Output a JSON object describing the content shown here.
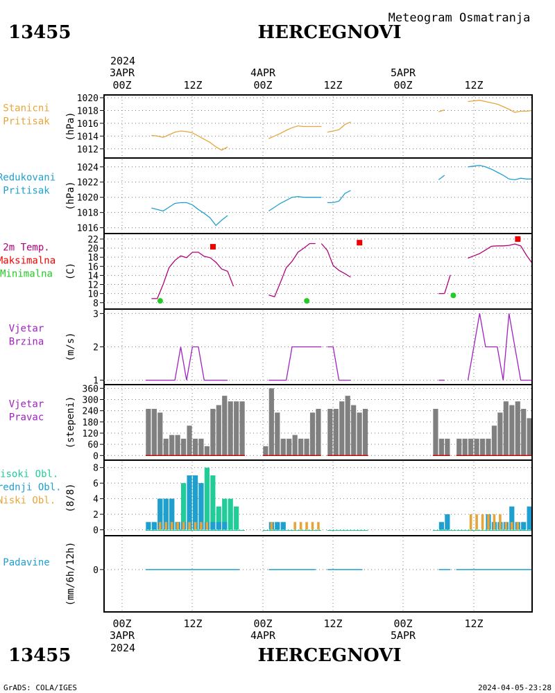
{
  "header": {
    "station_id": "13455",
    "station_name": "HERCEGNOVI",
    "subtitle": "Meteogram Osmatranja",
    "top_year": "2024",
    "top_dates": [
      "3APR",
      "4APR",
      "5APR"
    ],
    "top_hours": [
      "00Z",
      "12Z",
      "00Z",
      "12Z",
      "00Z",
      "12Z"
    ],
    "bottom_hours": [
      "00Z",
      "12Z",
      "00Z",
      "12Z",
      "00Z",
      "12Z"
    ],
    "bottom_dates": [
      "3APR",
      "4APR",
      "5APR"
    ],
    "bottom_year": "2024"
  },
  "footer": {
    "credit": "GrADS: COLA/IGES",
    "timestamp": "2024-04-05-23:28"
  },
  "colors": {
    "pressure_station": "#e6a53a",
    "pressure_reduced": "#1e9fd0",
    "temperature": "#b0007a",
    "tmax": "#ee0000",
    "tmin": "#22cc22",
    "wind": "#a020c0",
    "direction_bar": "#808080",
    "cloud_high": "#22cc99",
    "cloud_mid": "#1e9fd0",
    "cloud_low": "#e6a53a",
    "precip": "#1e9fd0"
  },
  "chart_data": [
    {
      "type": "line",
      "panel": "station_pressure",
      "labels": [
        "Stanicni",
        "Pritisak"
      ],
      "ylabel": "(hPa)",
      "ylim": [
        1011,
        1020
      ],
      "yticks": [
        1012,
        1014,
        1016,
        1018,
        1020
      ],
      "series": [
        {
          "x": [
            5,
            6,
            7,
            8,
            9,
            10,
            11,
            12,
            13,
            14,
            15,
            16,
            17,
            18
          ],
          "y": [
            1014.1,
            1014.0,
            1013.8,
            1014.2,
            1014.6,
            1014.8,
            1014.7,
            1014.5,
            1014.0,
            1013.5,
            1013.0,
            1012.3,
            1011.8,
            1012.3
          ]
        },
        {
          "x": [
            25,
            26,
            27,
            28,
            29,
            30,
            31,
            32,
            33,
            34
          ],
          "y": [
            1013.6,
            1014.0,
            1014.4,
            1014.9,
            1015.3,
            1015.6,
            1015.5,
            1015.5,
            1015.5,
            1015.5
          ]
        },
        {
          "x": [
            35,
            36,
            37,
            38,
            39
          ],
          "y": [
            1014.6,
            1014.8,
            1015.0,
            1015.8,
            1016.2
          ]
        },
        {
          "x": [
            54,
            55
          ],
          "y": [
            1017.8,
            1018.1
          ]
        },
        {
          "x": [
            59,
            60,
            61,
            62,
            63,
            64,
            65,
            66,
            67,
            68,
            69,
            70,
            71,
            72
          ],
          "y": [
            1019.4,
            1019.5,
            1019.6,
            1019.4,
            1019.2,
            1019.0,
            1018.6,
            1018.2,
            1017.7,
            1017.9,
            1017.9,
            1018.0,
            1018.4,
            1018.3
          ]
        }
      ]
    },
    {
      "type": "line",
      "panel": "reduced_pressure",
      "labels": [
        "Redukovani",
        "Pritisak"
      ],
      "ylabel": "(hPa)",
      "ylim": [
        1015.6,
        1024.8
      ],
      "yticks": [
        1016,
        1018,
        1020,
        1022,
        1024
      ],
      "series": [
        {
          "x": [
            5,
            6,
            7,
            8,
            9,
            10,
            11,
            12,
            13,
            14,
            15,
            16,
            17,
            18
          ],
          "y": [
            1018.6,
            1018.4,
            1018.2,
            1018.7,
            1019.2,
            1019.3,
            1019.3,
            1019.0,
            1018.4,
            1017.9,
            1017.3,
            1016.3,
            1017.0,
            1017.6
          ]
        },
        {
          "x": [
            25,
            26,
            27,
            28,
            29,
            30,
            31,
            32,
            33,
            34
          ],
          "y": [
            1018.2,
            1018.7,
            1019.2,
            1019.6,
            1020.0,
            1020.1,
            1020.0,
            1020.0,
            1020.0,
            1020.0
          ]
        },
        {
          "x": [
            35,
            36,
            37,
            38,
            39
          ],
          "y": [
            1019.3,
            1019.3,
            1019.5,
            1020.5,
            1020.9
          ]
        },
        {
          "x": [
            54,
            55
          ],
          "y": [
            1022.3,
            1022.9
          ]
        },
        {
          "x": [
            59,
            60,
            61,
            62,
            63,
            64,
            65,
            66,
            67,
            68,
            69,
            70,
            71,
            72
          ],
          "y": [
            1024.0,
            1024.1,
            1024.2,
            1024.0,
            1023.7,
            1023.3,
            1022.9,
            1022.4,
            1022.3,
            1022.5,
            1022.4,
            1022.4,
            1022.8,
            1022.9
          ]
        }
      ]
    },
    {
      "type": "line",
      "panel": "temperature",
      "labels": [
        "2m Temp.",
        "Maksimalna",
        "Minimalna"
      ],
      "ylabel": "(C)",
      "ylim": [
        7.2,
        22.6
      ],
      "yticks": [
        8,
        10,
        12,
        14,
        16,
        18,
        20,
        22
      ],
      "series": [
        {
          "x": [
            5,
            6,
            7,
            8,
            9,
            10,
            11,
            12,
            13,
            14,
            15,
            16,
            17,
            18
          ],
          "y": [
            8.9,
            8.9,
            12.0,
            15.7,
            17.3,
            18.3,
            17.9,
            19.1,
            19.1,
            18.2,
            17.9,
            16.9,
            15.4,
            14.9
          ]
        },
        {
          "x": [
            18,
            19
          ],
          "y": [
            14.9,
            11.6
          ]
        },
        {
          "x": [
            25,
            26,
            27,
            28,
            29,
            30,
            31,
            32,
            33
          ],
          "y": [
            9.7,
            9.3,
            12.4,
            15.7,
            17.1,
            19.1,
            20.0,
            21.0,
            21.0
          ]
        },
        {
          "x": [
            34,
            35,
            36,
            37,
            38,
            39
          ],
          "y": [
            21.0,
            19.5,
            16.2,
            15.1,
            14.4,
            13.6
          ]
        },
        {
          "x": [
            54,
            55
          ],
          "y": [
            10.0,
            10.0
          ]
        },
        {
          "x": [
            55,
            56
          ],
          "y": [
            10.0,
            14.1
          ]
        },
        {
          "x": [
            59,
            60,
            61,
            62,
            63,
            64,
            65,
            66,
            67,
            68,
            69,
            70,
            71,
            72
          ],
          "y": [
            17.8,
            18.3,
            18.8,
            19.6,
            20.4,
            20.5,
            20.5,
            20.6,
            20.9,
            20.5,
            18.4,
            16.6,
            15.3,
            13.9
          ]
        }
      ],
      "tmax": [
        {
          "x": 15.5,
          "y": 20.3
        },
        {
          "x": 40.5,
          "y": 21.2
        },
        {
          "x": 67.5,
          "y": 22.0
        }
      ],
      "tmin": [
        {
          "x": 6.5,
          "y": 8.4
        },
        {
          "x": 31.5,
          "y": 8.4
        },
        {
          "x": 56.5,
          "y": 9.6
        }
      ]
    },
    {
      "type": "line",
      "panel": "wind_speed",
      "labels": [
        "Vjetar",
        "Brzina"
      ],
      "ylabel": "(m/s)",
      "ylim": [
        0.95,
        3.05
      ],
      "yticks": [
        1,
        2,
        3
      ],
      "series": [
        {
          "x": [
            4,
            5,
            6,
            7,
            8,
            9,
            10,
            11,
            12,
            13,
            14,
            15,
            16,
            17,
            18
          ],
          "y": [
            1,
            1,
            1,
            1,
            1,
            1,
            2,
            1,
            2,
            2,
            1,
            1,
            1,
            1,
            1
          ]
        },
        {
          "x": [
            25,
            26,
            27,
            28,
            29,
            30,
            31,
            32,
            33,
            34
          ],
          "y": [
            1,
            1,
            1,
            1,
            2,
            2,
            2,
            2,
            2,
            2
          ]
        },
        {
          "x": [
            35,
            36,
            37,
            38,
            39
          ],
          "y": [
            2,
            2,
            1,
            1,
            1
          ]
        },
        {
          "x": [
            54,
            55
          ],
          "y": [
            1,
            1
          ]
        },
        {
          "x": [
            59,
            60,
            61,
            62,
            63,
            64,
            65,
            66,
            67,
            68,
            69,
            70,
            71,
            72
          ],
          "y": [
            1,
            2,
            3,
            2,
            2,
            2,
            1,
            3,
            2,
            1,
            1,
            1,
            1,
            1
          ]
        }
      ]
    },
    {
      "type": "bar",
      "panel": "wind_direction",
      "labels": [
        "Vjetar",
        "Pravac"
      ],
      "ylabel": "(stepeni)",
      "ylim": [
        -10,
        365
      ],
      "yticks": [
        0,
        60,
        120,
        180,
        240,
        300,
        360
      ],
      "x": [
        4,
        5,
        6,
        7,
        8,
        9,
        10,
        11,
        12,
        13,
        14,
        15,
        16,
        17,
        18,
        19,
        20,
        24,
        25,
        26,
        27,
        28,
        29,
        30,
        31,
        32,
        33,
        35,
        36,
        37,
        38,
        39,
        40,
        41,
        53,
        54,
        55,
        57,
        58,
        59,
        60,
        61,
        62,
        63,
        64,
        65,
        66,
        67,
        68,
        69,
        70
      ],
      "values": [
        250,
        250,
        230,
        90,
        110,
        110,
        90,
        160,
        90,
        90,
        50,
        250,
        270,
        320,
        290,
        290,
        290,
        50,
        360,
        230,
        90,
        90,
        110,
        90,
        90,
        230,
        250,
        250,
        250,
        290,
        320,
        270,
        230,
        250,
        250,
        90,
        90,
        90,
        90,
        90,
        90,
        90,
        90,
        160,
        230,
        290,
        270,
        290,
        250,
        200,
        10
      ],
      "line_segments": [
        [
          4,
          20
        ],
        [
          24,
          33
        ],
        [
          35,
          41
        ],
        [
          53,
          55
        ],
        [
          57,
          70
        ]
      ]
    },
    {
      "type": "bar",
      "panel": "clouds",
      "labels": [
        "Visoki Obl.",
        "Srednji Obl.",
        "Niski Obl."
      ],
      "ylabel": "(8/8)",
      "ylim": [
        -0.4,
        8.6
      ],
      "yticks": [
        0,
        2,
        4,
        6,
        8
      ],
      "series": [
        {
          "name": "Visoki Obl.",
          "x": [
            6,
            7,
            8,
            9,
            10,
            11,
            12,
            13,
            14,
            15,
            16,
            17,
            18,
            19
          ],
          "values": [
            4,
            4,
            4,
            1,
            6,
            6,
            7,
            6,
            8,
            7,
            3,
            4,
            4,
            3
          ]
        },
        {
          "name": "Srednji Obl.",
          "x": [
            4,
            5,
            6,
            7,
            8,
            9,
            10,
            11,
            12,
            13,
            14,
            15,
            16,
            17,
            25,
            26,
            27,
            54,
            55,
            62,
            63,
            64,
            65,
            66,
            67,
            68,
            69
          ],
          "values": [
            1,
            1,
            4,
            4,
            4,
            1,
            1,
            7,
            7,
            6,
            1,
            1,
            1,
            1,
            1,
            1,
            1,
            1,
            2,
            2,
            1,
            1,
            1,
            3,
            1,
            1,
            3
          ]
        },
        {
          "name": "Niski Obl.",
          "x": [
            6,
            7,
            8,
            9,
            10,
            11,
            12,
            13,
            14,
            25,
            29,
            30,
            31,
            32,
            33,
            59,
            60,
            61,
            62,
            63,
            64,
            65,
            66,
            67
          ],
          "values": [
            1,
            1,
            1,
            1,
            1,
            1,
            1,
            1,
            1,
            1,
            1,
            1,
            1,
            1,
            1,
            2,
            2,
            2,
            2,
            2,
            2,
            1,
            1,
            1
          ]
        }
      ]
    },
    {
      "type": "line",
      "panel": "precipitation",
      "labels": [
        "Padavine"
      ],
      "ylabel": "(mm/6h/12h)",
      "ylim": [
        -2.8,
        2.2
      ],
      "yticks": [
        0
      ],
      "series": [
        {
          "x": [
            4,
            20
          ],
          "y": [
            0,
            0
          ]
        },
        {
          "x": [
            25,
            33
          ],
          "y": [
            0,
            0
          ]
        },
        {
          "x": [
            35,
            41
          ],
          "y": [
            0,
            0
          ]
        },
        {
          "x": [
            54,
            56
          ],
          "y": [
            0,
            0
          ]
        },
        {
          "x": [
            57,
            72
          ],
          "y": [
            0,
            0
          ]
        }
      ]
    }
  ]
}
